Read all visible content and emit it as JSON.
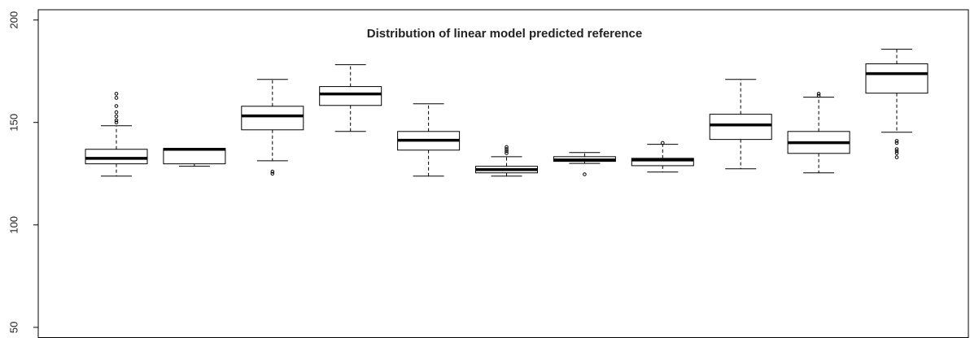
{
  "chart_data": {
    "type": "box",
    "title": "Distribution of linear model predicted reference",
    "ylim": [
      45,
      205
    ],
    "yticks": [
      50,
      100,
      150,
      200
    ],
    "color": "#000000",
    "boxes": [
      {
        "whislo": 123.8,
        "q1": 129.8,
        "med": 132.5,
        "q3": 136.9,
        "whishi": 148.4,
        "fliers": [
          150,
          151,
          153,
          155,
          158,
          162,
          164
        ]
      },
      {
        "whislo": 128.6,
        "q1": 129.8,
        "med": 136.9,
        "q3": 137.3,
        "whishi": 137.3,
        "fliers": []
      },
      {
        "whislo": 131.3,
        "q1": 146.4,
        "med": 153.2,
        "q3": 157.9,
        "whishi": 171,
        "fliers": [
          126,
          125
        ]
      },
      {
        "whislo": 145.6,
        "q1": 158.3,
        "med": 163.9,
        "q3": 167.5,
        "whishi": 178.2,
        "fliers": []
      },
      {
        "whislo": 123.8,
        "q1": 136.5,
        "med": 141.3,
        "q3": 145.6,
        "whishi": 159.1,
        "fliers": []
      },
      {
        "whislo": 123.8,
        "q1": 125.4,
        "med": 127,
        "q3": 128.6,
        "whishi": 133.3,
        "fliers": [
          135,
          136,
          137,
          138
        ]
      },
      {
        "whislo": 130,
        "q1": 131,
        "med": 131.7,
        "q3": 133.3,
        "whishi": 135.3,
        "fliers": [
          124.7
        ]
      },
      {
        "whislo": 125.8,
        "q1": 128.9,
        "med": 131.7,
        "q3": 132.5,
        "whishi": 139.3,
        "fliers": [
          140
        ]
      },
      {
        "whislo": 127.4,
        "q1": 141.7,
        "med": 148.8,
        "q3": 154,
        "whishi": 171,
        "fliers": []
      },
      {
        "whislo": 125.4,
        "q1": 134.9,
        "med": 140.1,
        "q3": 145.6,
        "whishi": 162.3,
        "fliers": [
          163,
          164
        ]
      },
      {
        "whislo": 145.2,
        "q1": 164.3,
        "med": 173.8,
        "q3": 178.6,
        "whishi": 185.7,
        "fliers": [
          141,
          140,
          137,
          136,
          135,
          133
        ]
      }
    ]
  }
}
